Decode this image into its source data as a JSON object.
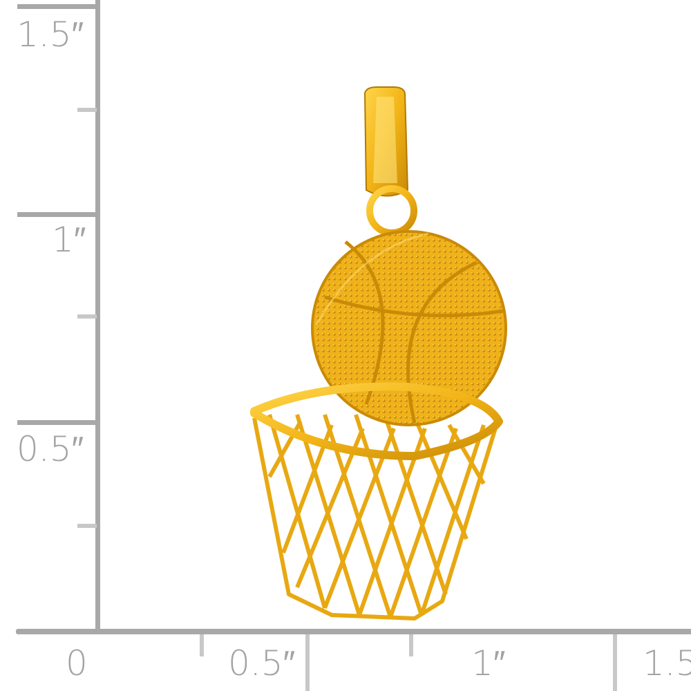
{
  "ruler": {
    "vertical_labels": [
      "1.5″",
      "1″",
      "0.5″"
    ],
    "horizontal_labels": [
      "0",
      "0.5″",
      "1″",
      "1.5"
    ],
    "color": "#a8a8a8"
  },
  "product": {
    "subject": "basketball-and-hoop-pendant",
    "metal_color": "#f2b417"
  }
}
